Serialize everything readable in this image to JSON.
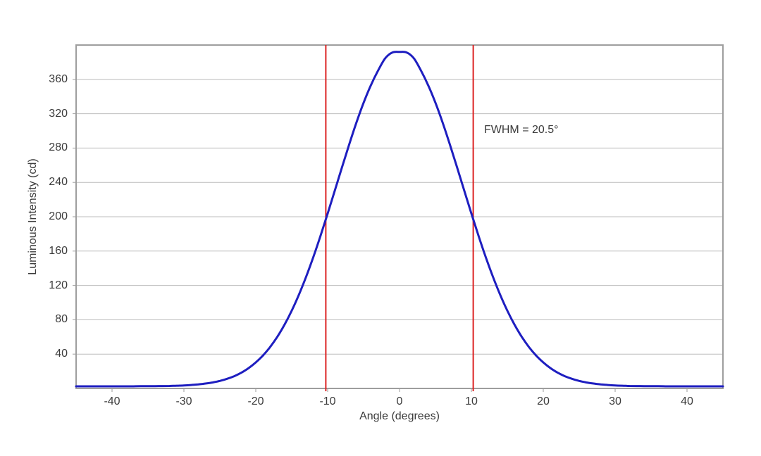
{
  "chart_data": {
    "type": "line",
    "title": "",
    "xlabel": "Angle (degrees)",
    "ylabel": "Luminous Intensity (cd)",
    "annotation": "FWHM = 20.5°",
    "fwhm_degrees": 20.5,
    "xlim": [
      -45,
      45
    ],
    "ylim": [
      0,
      400
    ],
    "x_ticks": [
      -40,
      -30,
      -20,
      -10,
      0,
      10,
      20,
      30,
      40
    ],
    "x_tick_labels": [
      "-40",
      "-30",
      "-20",
      "-10",
      "0",
      "10",
      "20",
      "30",
      "40"
    ],
    "y_ticks": [
      40,
      80,
      120,
      160,
      200,
      240,
      280,
      320,
      360
    ],
    "y_tick_labels": [
      "40",
      "80",
      "120",
      "160",
      "200",
      "240",
      "280",
      "320",
      "360"
    ],
    "grid": "horizontal-only",
    "legend": "none",
    "half_max_lines": {
      "positions_deg": [
        -10.25,
        10.25
      ],
      "color": "#dc2323"
    },
    "series": [
      {
        "name": "luminous-intensity-curve",
        "color": "#1e1ec0",
        "x": [
          -45,
          -44,
          -43,
          -42,
          -41,
          -40,
          -39,
          -38,
          -37,
          -36,
          -35,
          -34,
          -33,
          -32,
          -31,
          -30,
          -29,
          -28,
          -27,
          -26,
          -25,
          -24,
          -23,
          -22,
          -21,
          -20,
          -19,
          -18,
          -17,
          -16,
          -15,
          -14,
          -13,
          -12,
          -11,
          -10,
          -9,
          -8,
          -7,
          -6,
          -5,
          -4,
          -3,
          -2,
          -1,
          0,
          1,
          2,
          3,
          4,
          5,
          6,
          7,
          8,
          9,
          10,
          11,
          12,
          13,
          14,
          15,
          16,
          17,
          18,
          19,
          20,
          21,
          22,
          23,
          24,
          25,
          26,
          27,
          28,
          29,
          30,
          31,
          32,
          33,
          34,
          35,
          36,
          37,
          38,
          39,
          40,
          41,
          42,
          43,
          44,
          45
        ],
        "y": [
          2.5,
          2.5,
          2.5,
          2.5,
          2.5,
          2.5,
          2.5,
          2.5,
          2.5,
          2.6,
          2.6,
          2.7,
          2.8,
          2.9,
          3.2,
          3.5,
          4.0,
          4.7,
          5.7,
          7.0,
          8.8,
          11.2,
          14.3,
          18.4,
          23.7,
          30.3,
          38.4,
          48.3,
          60.2,
          74.3,
          90.6,
          109.2,
          130.0,
          152.9,
          177.6,
          203.7,
          230.6,
          257.7,
          284.3,
          309.6,
          332.7,
          352.9,
          370.0,
          384.5,
          391.3,
          392.0,
          391.3,
          384.5,
          370.0,
          352.9,
          332.7,
          309.6,
          284.3,
          257.7,
          230.6,
          203.7,
          177.6,
          152.9,
          130.0,
          109.2,
          90.6,
          74.3,
          60.2,
          48.3,
          38.4,
          30.3,
          23.7,
          18.4,
          14.3,
          11.2,
          8.8,
          7.0,
          5.7,
          4.7,
          4.0,
          3.5,
          3.2,
          2.9,
          2.8,
          2.7,
          2.6,
          2.6,
          2.5,
          2.5,
          2.5,
          2.5,
          2.5,
          2.5,
          2.5,
          2.5,
          2.5
        ]
      }
    ],
    "style": {
      "grid_color": "#bcbcbc",
      "axis_color": "#9e9e9e",
      "text_color": "#3b3b3b",
      "background_color": "#ffffff"
    }
  }
}
